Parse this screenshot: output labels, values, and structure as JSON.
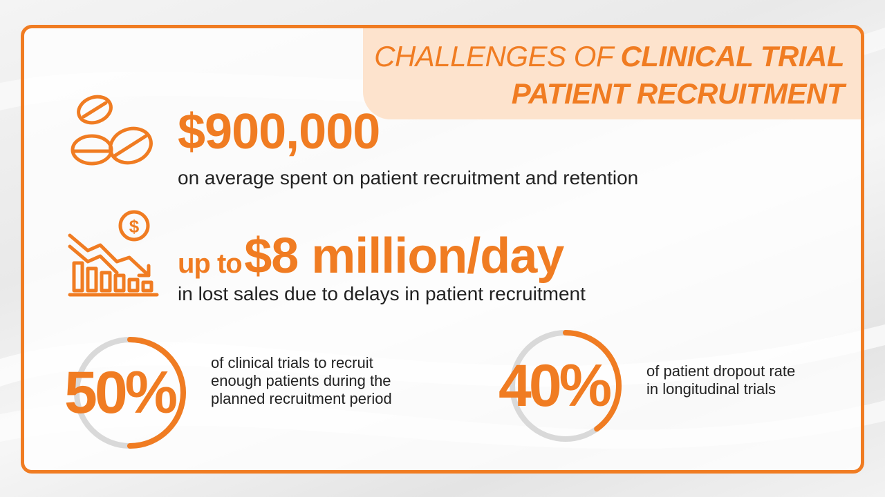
{
  "title": {
    "line1_light": "CHALLENGES OF ",
    "line1_bold": "CLINICAL TRIAL",
    "line2_bold": "PATIENT RECRUITMENT"
  },
  "stats": [
    {
      "value": "$900,000",
      "description": "on average spent on patient recruitment and retention",
      "icon": "pills-icon"
    },
    {
      "prefix": "up to",
      "value": "$8 million/day",
      "description": "in lost sales due to delays in patient recruitment",
      "icon": "declining-chart-dollar-icon"
    }
  ],
  "gauges": [
    {
      "value": "50%",
      "percent": 50,
      "line1": "of clinical trials to recruit",
      "line2": "enough patients during the",
      "line3": "planned recruitment period"
    },
    {
      "value": "40%",
      "percent": 40,
      "line1": "of patient dropout rate",
      "line2": "in longitudinal trials"
    }
  ],
  "colors": {
    "accent": "#f07c22",
    "title_bg": "#fde3cd",
    "gauge_track": "#d9d9d9",
    "text": "#222222"
  }
}
